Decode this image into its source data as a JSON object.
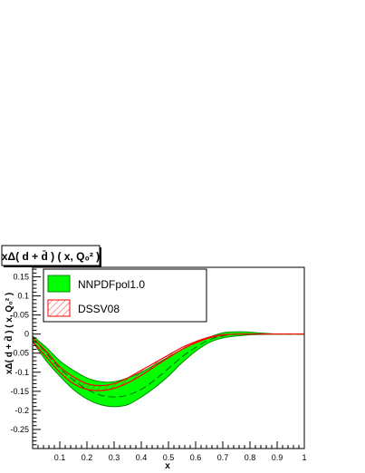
{
  "chart_data": {
    "type": "area",
    "title": "xΔ( d + d̄ ) ( x, Q₀² )",
    "xlabel": "x",
    "ylabel": "xΔ( d + d̄ ) ( x, Q₀² )",
    "xlim": [
      0.0,
      1.0
    ],
    "ylim": [
      -0.3,
      0.175
    ],
    "x_ticks": [
      0.1,
      0.2,
      0.3,
      0.4,
      0.5,
      0.6,
      0.7,
      0.8,
      0.9,
      1
    ],
    "y_ticks": [
      0.15,
      0.1,
      0.05,
      0,
      -0.05,
      -0.1,
      -0.15,
      -0.2,
      -0.25
    ],
    "legend_position": "top-left",
    "grid": false,
    "x": [
      0.0,
      0.05,
      0.1,
      0.15,
      0.2,
      0.25,
      0.3,
      0.35,
      0.4,
      0.45,
      0.5,
      0.55,
      0.6,
      0.65,
      0.7,
      0.75,
      0.8,
      0.85,
      0.9,
      0.95,
      1.0
    ],
    "series": [
      {
        "name": "NNPDFpol1.0",
        "color": "#00ff00",
        "edge_color": "#00aa00",
        "style": "band",
        "central": [
          -0.01,
          -0.05,
          -0.09,
          -0.12,
          -0.145,
          -0.16,
          -0.165,
          -0.16,
          -0.145,
          -0.12,
          -0.09,
          -0.06,
          -0.035,
          -0.015,
          -0.005,
          0.0,
          0.0,
          0.0,
          0.0,
          0.0,
          0.0
        ],
        "upper": [
          -0.005,
          -0.035,
          -0.07,
          -0.095,
          -0.115,
          -0.125,
          -0.125,
          -0.115,
          -0.1,
          -0.08,
          -0.06,
          -0.04,
          -0.022,
          -0.008,
          0.003,
          0.006,
          0.005,
          0.002,
          0.0,
          0.0,
          0.0
        ],
        "lower": [
          -0.02,
          -0.07,
          -0.11,
          -0.145,
          -0.17,
          -0.185,
          -0.19,
          -0.185,
          -0.165,
          -0.14,
          -0.11,
          -0.075,
          -0.045,
          -0.022,
          -0.01,
          -0.005,
          -0.002,
          -0.001,
          0.0,
          0.0,
          0.0
        ]
      },
      {
        "name": "DSSV08",
        "color": "#ff0000",
        "style": "hatched",
        "upper": [
          -0.01,
          -0.045,
          -0.085,
          -0.112,
          -0.13,
          -0.135,
          -0.13,
          -0.115,
          -0.095,
          -0.075,
          -0.055,
          -0.035,
          -0.02,
          -0.008,
          -0.002,
          0.0,
          0.0,
          0.0,
          0.0,
          0.0,
          0.0
        ],
        "lower": [
          -0.02,
          -0.06,
          -0.1,
          -0.13,
          -0.145,
          -0.148,
          -0.142,
          -0.128,
          -0.108,
          -0.085,
          -0.062,
          -0.04,
          -0.023,
          -0.01,
          -0.003,
          0.0,
          0.0,
          0.0,
          0.0,
          0.0,
          0.0
        ]
      }
    ]
  }
}
